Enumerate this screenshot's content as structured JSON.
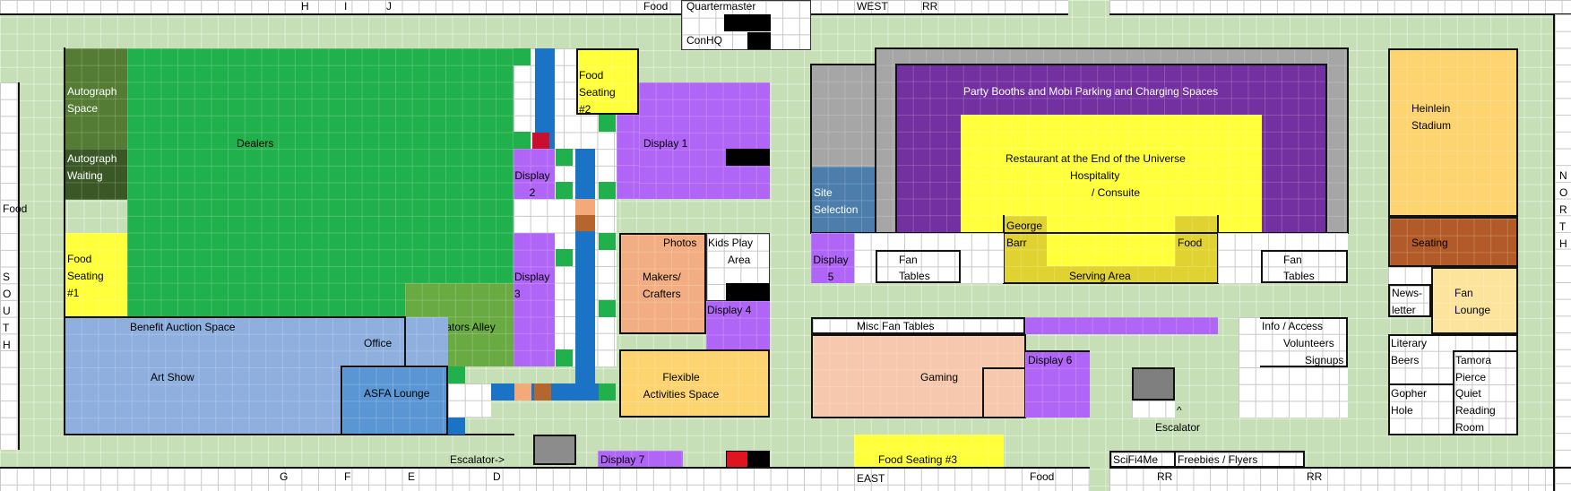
{
  "map": {
    "top_letters": [
      "H",
      "I",
      "J"
    ],
    "bottom_letters": [
      "G",
      "F",
      "E",
      "D"
    ],
    "south_letters": [
      "S",
      "O",
      "U",
      "T",
      "H"
    ],
    "north_letters": [
      "N",
      "O",
      "R",
      "T",
      "H"
    ],
    "labels": {
      "food_top": "Food",
      "quartermaster": "Quartermaster",
      "conhq": "ConHQ",
      "west": "WEST",
      "rr_top": "RR",
      "food_left": "Food",
      "autograph_space": "Autograph Space",
      "autograph_waiting": "Autograph Waiting",
      "dealers": "Dealers",
      "food_seating_1": "Food Seating #1",
      "food_seating_2": "Food Seating #2",
      "display_1": "Display 1",
      "display_2": "Display 2",
      "display_3": "Display 3",
      "display_4": "Display 4",
      "display_5": "Display 5",
      "display_6": "Display 6",
      "display_7": "Display 7",
      "benefit_auction": "Benefit Auction Space",
      "office": "Office",
      "creators_alley": "Creators Alley",
      "art_show": "Art Show",
      "asfa_lounge": "ASFA Lounge",
      "photos": "Photos",
      "kids_play": "Kids Play",
      "area": "Area",
      "makers": "Makers/ Crafters",
      "flexible": "Flexible Activities Space",
      "escalator_arrow": "Escalator->",
      "site_selection": "Site Selection",
      "party_booths": "Party Booths and Mobi Parking and Charging Spaces",
      "restaurant": "Restaurant at the End of the Universe",
      "hospitality": "Hospitality",
      "consuite": "/ Consuite",
      "george_barr": "George Barr",
      "food_serving": "Food",
      "serving_area": "Serving Area",
      "fan": "Fan",
      "tables": "Tables",
      "misc_fan_tables": "Misc Fan Tables",
      "gaming": "Gaming",
      "info_access": "Info / Access",
      "volunteers": "Volunteers",
      "signups": "Signups",
      "caret": "^",
      "escalator": "Escalator",
      "food_seating_3": "Food Seating #3",
      "east": "EAST",
      "food_bottom": "Food",
      "scifi4me": "SciFi4Me",
      "rr_bottom_1": "RR",
      "freebies": "Freebies / Flyers",
      "rr_bottom_2": "RR",
      "heinlein": "Heinlein Stadium",
      "seating": "Seating",
      "newsletter": "News- letter",
      "fan_lounge": "Fan Lounge",
      "literary_beers": "Literary Beers",
      "tamora_pierce": "Tamora Pierce",
      "gopher_hole": "Gopher Hole",
      "quiet_reading": "Quiet Reading Room"
    },
    "colors": {
      "aisle": "#c6dfb6",
      "dealers": "#20b14c",
      "autograph": "#557c35",
      "autograph_waiting": "#3a5826",
      "creators": "#6aaa43",
      "food_seating": "#ffff3b",
      "display": "#b065f7",
      "art_show": "#8fb0df",
      "asfa": "#5a96d4",
      "makers": "#f2ae82",
      "flexible": "#fdd470",
      "party": "#7230a0",
      "restaurant": "#ffff3b",
      "serving": "#e0d231",
      "site_selection": "#4c7dab",
      "gaming": "#f6c8ad",
      "heinlein": "#fdd470",
      "seating": "#b35b28",
      "fan_lounge": "#fde49c",
      "gray": "#a6a6a6",
      "blue_aisle": "#1a73c4",
      "red": "#e0141e"
    }
  }
}
